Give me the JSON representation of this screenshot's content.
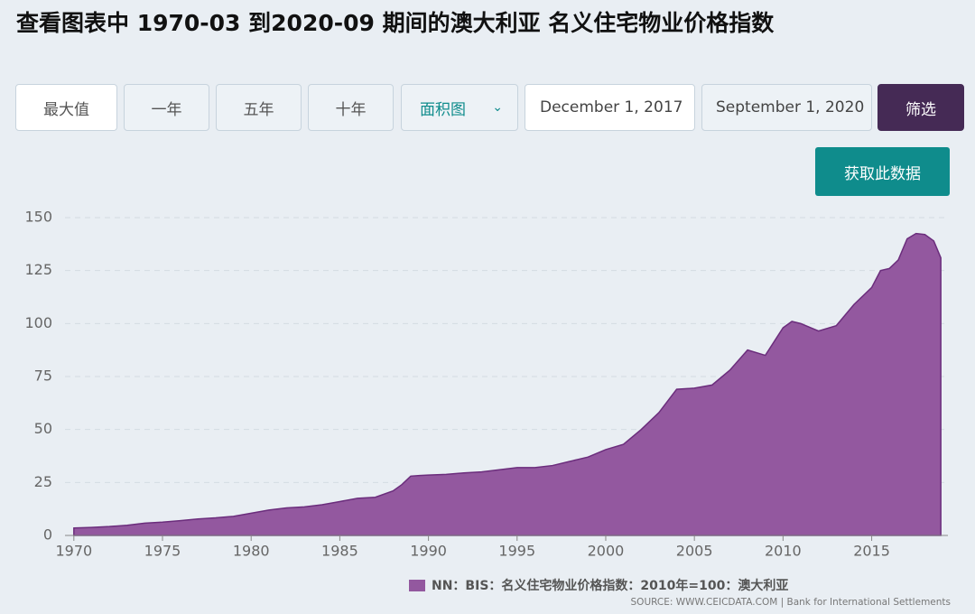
{
  "header": {
    "title": "查看图表中 1970-03 到2020-09 期间的澳大利亚 名义住宅物业价格指数"
  },
  "controls": {
    "buttons": [
      "最大值",
      "一年",
      "五年",
      "十年"
    ],
    "chart_type": "面积图",
    "start_date": "December 1, 2017",
    "end_date": "September 1, 2020",
    "filter": "筛选",
    "get_data": "获取此数据"
  },
  "chart_data": {
    "type": "area",
    "x": [
      1970,
      1971,
      1972,
      1973,
      1974,
      1975,
      1976,
      1977,
      1978,
      1979,
      1980,
      1981,
      1982,
      1983,
      1984,
      1985,
      1986,
      1987,
      1988,
      1988.5,
      1989,
      1989.5,
      1990,
      1991,
      1992,
      1993,
      1994,
      1995,
      1996,
      1997,
      1998,
      1999,
      2000,
      2001,
      2002,
      2003,
      2004,
      2005,
      2006,
      2007,
      2008,
      2009,
      2010,
      2010.5,
      2011,
      2012,
      2013,
      2014,
      2015,
      2015.5,
      2016,
      2016.5,
      2017,
      2017.5,
      2018,
      2018.5,
      2018.9
    ],
    "series": [
      {
        "name": "NN：BIS：名义住宅物业价格指数：2010年=100：澳大利亚",
        "color": "#93589f",
        "values": [
          3.5,
          3.8,
          4.2,
          4.8,
          5.8,
          6.3,
          7.0,
          7.8,
          8.3,
          9.0,
          10.5,
          12.0,
          13.0,
          13.5,
          14.5,
          16.0,
          17.5,
          18.0,
          21,
          24,
          28,
          28.3,
          28.5,
          28.8,
          29.5,
          30,
          31,
          32,
          32,
          33,
          35,
          37,
          40.5,
          43,
          50,
          58,
          69,
          69.5,
          71,
          78,
          87.5,
          85,
          98,
          101,
          100,
          96.5,
          99,
          109,
          117,
          125,
          126,
          130,
          140,
          142.5,
          142,
          139,
          131
        ]
      }
    ],
    "xlim": [
      1969.5,
      2019.3
    ],
    "xticks": [
      1970,
      1975,
      1980,
      1985,
      1990,
      1995,
      2000,
      2005,
      2010,
      2015
    ],
    "ylim": [
      0,
      150
    ],
    "yticks": [
      0,
      25,
      50,
      75,
      100,
      125,
      150
    ],
    "grid": true
  },
  "source": "SOURCE: WWW.CEICDATA.COM | Bank for International Settlements"
}
